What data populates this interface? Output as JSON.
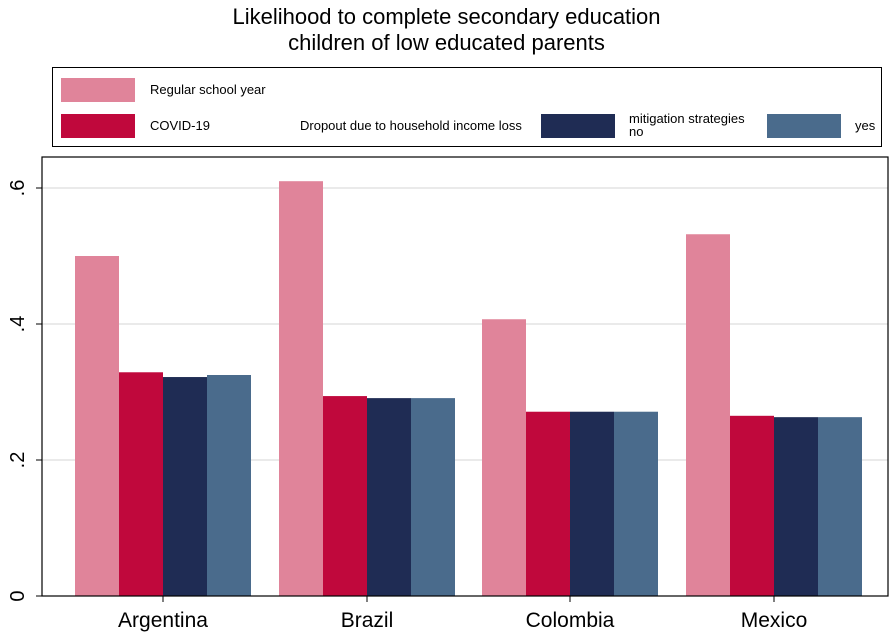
{
  "chart_data": {
    "type": "bar",
    "title": "Likelihood to complete secondary education",
    "subtitle": "children of low educated parents",
    "categories": [
      "Argentina",
      "Brazil",
      "Colombia",
      "Mexico"
    ],
    "series": [
      {
        "name": "Regular school year",
        "values": [
          0.5,
          0.61,
          0.407,
          0.532
        ]
      },
      {
        "name": "COVID-19",
        "values": [
          0.329,
          0.294,
          0.271,
          0.265
        ]
      },
      {
        "name": "no",
        "values": [
          0.322,
          0.291,
          0.271,
          0.263
        ]
      },
      {
        "name": "yes",
        "values": [
          0.325,
          0.291,
          0.271,
          0.263
        ]
      }
    ],
    "legend_group_label": "Dropout due to household income loss",
    "legend_group_sublabel": "mitigation strategies",
    "yticks": [
      0,
      0.2,
      0.4,
      0.6
    ],
    "ytick_labels": [
      "0",
      ".2",
      ".4",
      ".6"
    ],
    "ylim": [
      0,
      0.65
    ],
    "xlabel": "",
    "ylabel": "",
    "grid": true,
    "legend_position": "top",
    "colors": [
      "#e0849a",
      "#c0083c",
      "#1f2c54",
      "#4a6b8c"
    ]
  }
}
